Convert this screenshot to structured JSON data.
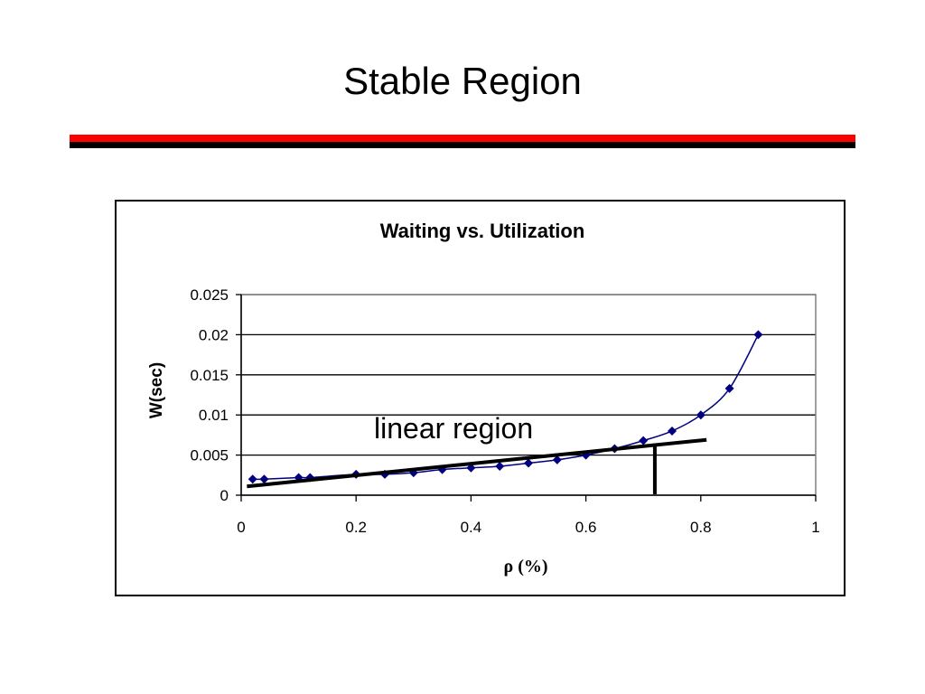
{
  "slide": {
    "title": "Stable Region",
    "colors": {
      "rule_top": "#ff0000",
      "rule_bottom": "#000000"
    }
  },
  "chart_data": {
    "type": "line",
    "title": "Waiting vs. Utilization",
    "xlabel": "ρ (%)",
    "ylabel": "W(sec)",
    "xlim": [
      0,
      1
    ],
    "ylim": [
      0,
      0.025
    ],
    "x_ticks": [
      "0",
      "0.2",
      "0.4",
      "0.6",
      "0.8",
      "1"
    ],
    "y_ticks": [
      "0",
      "0.005",
      "0.01",
      "0.015",
      "0.02",
      "0.025"
    ],
    "grid": "horizontal",
    "legend": "none",
    "series": [
      {
        "color": "#000080",
        "marker": "diamond",
        "x": [
          0.02,
          0.04,
          0.1,
          0.12,
          0.2,
          0.25,
          0.3,
          0.35,
          0.4,
          0.45,
          0.5,
          0.55,
          0.6,
          0.65,
          0.7,
          0.75,
          0.8,
          0.85,
          0.9
        ],
        "y": [
          0.002,
          0.002,
          0.0022,
          0.0022,
          0.0026,
          0.0026,
          0.0028,
          0.0032,
          0.0034,
          0.0036,
          0.004,
          0.0044,
          0.005,
          0.0058,
          0.0068,
          0.008,
          0.01,
          0.0133,
          0.02
        ]
      }
    ],
    "annotations": {
      "text": "linear region",
      "trend_line": {
        "x": [
          0.01,
          0.81
        ],
        "y": [
          0.0011,
          0.0069
        ],
        "color": "#000000"
      },
      "boundary_x": 0.72
    }
  }
}
